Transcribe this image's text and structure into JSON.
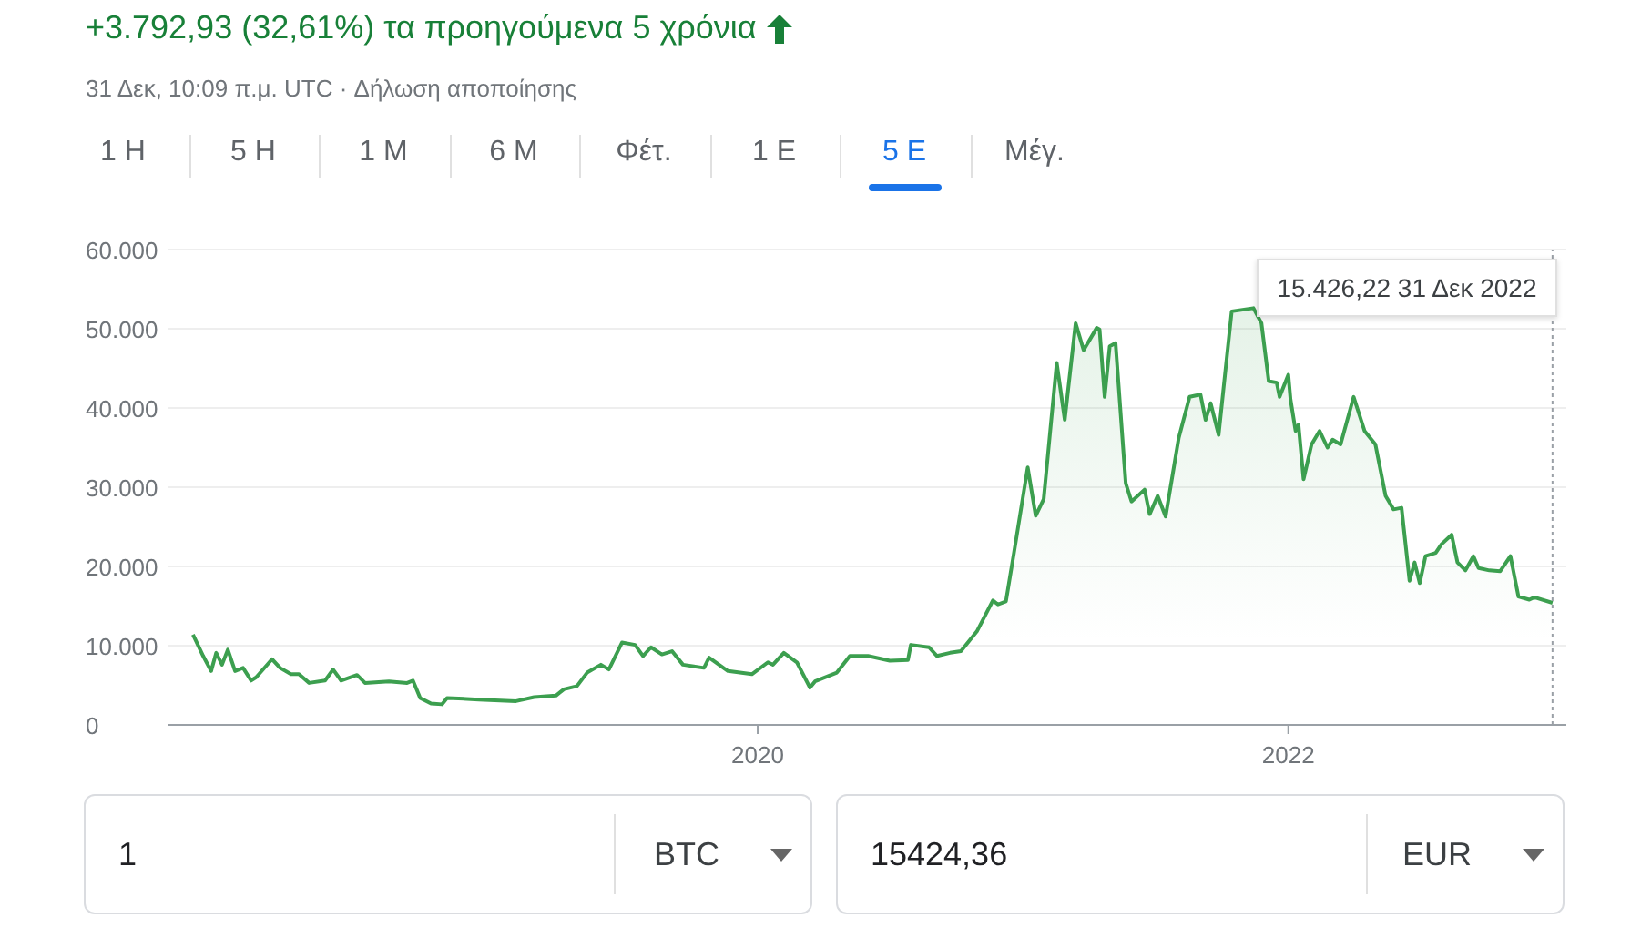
{
  "chart_data": {
    "type": "area",
    "title": "+3.792,93 (32,61%) τα προηγούμενα 5 χρόνια",
    "subtitle": "31 Δεκ, 10:09 π.μ. UTC · Δήλωση αποποίησης",
    "annotations": [
      "1 Η",
      "5 Η",
      "1 Μ",
      "6 Μ",
      "Φέτ.",
      "1 Ε",
      "5 Ε",
      "Μέγ.",
      "1",
      "BTC",
      "15424,36",
      "EUR",
      "15.426,22 31 Δεκ 2022"
    ],
    "ref_lines": [
      {
        "axis": "x",
        "value": "2022-12-31",
        "color": "#9aa0a6",
        "line_style": "dotted"
      }
    ],
    "x": [
      "2017-11-14",
      "2017-11-28",
      "2017-12-09",
      "2017-12-16",
      "2017-12-24",
      "2018-01-01",
      "2018-01-11",
      "2018-01-22",
      "2018-02-02",
      "2018-02-09",
      "2018-03-03",
      "2018-03-14",
      "2018-03-29",
      "2018-04-09",
      "2018-04-23",
      "2018-05-15",
      "2018-05-26",
      "2018-06-06",
      "2018-06-28",
      "2018-07-09",
      "2018-08-11",
      "2018-09-05",
      "2018-09-13",
      "2018-09-23",
      "2018-10-08",
      "2018-10-23",
      "2018-10-30",
      "2018-12-13",
      "2019-02-02",
      "2019-02-27",
      "2019-03-29",
      "2019-04-09",
      "2019-04-27",
      "2019-05-11",
      "2019-05-30",
      "2019-06-10",
      "2019-06-28",
      "2019-07-16",
      "2019-07-27",
      "2019-08-07",
      "2019-08-22",
      "2019-09-05",
      "2019-09-20",
      "2019-10-19",
      "2019-10-26",
      "2019-11-21",
      "2019-12-24",
      "2020-01-15",
      "2020-01-22",
      "2020-02-06",
      "2020-02-24",
      "2020-03-13",
      "2020-03-20",
      "2020-04-19",
      "2020-05-07",
      "2020-06-01",
      "2020-07-01",
      "2020-07-26",
      "2020-07-30",
      "2020-08-24",
      "2020-09-04",
      "2020-09-22",
      "2020-10-07",
      "2020-10-29",
      "2020-11-20",
      "2020-11-27",
      "2020-12-08",
      "2020-12-19",
      "2021-01-07",
      "2021-01-18",
      "2021-01-29",
      "2021-02-16",
      "2021-02-27",
      "2021-03-14",
      "2021-03-25",
      "2021-04-12",
      "2021-04-16",
      "2021-04-23",
      "2021-04-30",
      "2021-05-08",
      "2021-05-22",
      "2021-05-30",
      "2021-06-17",
      "2021-06-24",
      "2021-07-05",
      "2021-07-16",
      "2021-08-03",
      "2021-08-18",
      "2021-09-02",
      "2021-09-09",
      "2021-09-16",
      "2021-09-27",
      "2021-10-15",
      "2021-11-14",
      "2021-11-25",
      "2021-12-05",
      "2021-12-16",
      "2021-12-20",
      "2022-01-01",
      "2022-01-04",
      "2022-01-11",
      "2022-01-15",
      "2022-01-22",
      "2022-02-02",
      "2022-02-13",
      "2022-02-24",
      "2022-03-03",
      "2022-03-14",
      "2022-04-01",
      "2022-04-16",
      "2022-05-01",
      "2022-05-15",
      "2022-05-26",
      "2022-06-06",
      "2022-06-17",
      "2022-06-24",
      "2022-07-01",
      "2022-07-09",
      "2022-07-23",
      "2022-07-31",
      "2022-08-14",
      "2022-08-22",
      "2022-09-02",
      "2022-09-13",
      "2022-09-20",
      "2022-10-05",
      "2022-10-20",
      "2022-11-03",
      "2022-11-14",
      "2022-11-29",
      "2022-12-06",
      "2022-12-31"
    ],
    "series": [
      {
        "color": "#3c9f4f",
        "values": [
          11400,
          8700,
          6800,
          9100,
          7600,
          9500,
          6800,
          7200,
          5600,
          6000,
          8300,
          7200,
          6400,
          6400,
          5300,
          5600,
          7000,
          5600,
          6300,
          5300,
          5500,
          5300,
          5600,
          3400,
          2700,
          2600,
          3400,
          3200,
          3000,
          3500,
          3700,
          4500,
          4900,
          6600,
          7600,
          7000,
          10400,
          10100,
          8700,
          9800,
          8900,
          9300,
          7600,
          7200,
          8500,
          6800,
          6400,
          7900,
          7600,
          9100,
          7900,
          4700,
          5500,
          6600,
          8700,
          8700,
          8100,
          8200,
          10100,
          9800,
          8700,
          9100,
          9300,
          11800,
          15700,
          15200,
          15600,
          21700,
          32500,
          26400,
          28500,
          45700,
          38500,
          50700,
          47300,
          50100,
          49900,
          41400,
          47800,
          48200,
          30500,
          28200,
          29700,
          26600,
          28900,
          26300,
          36200,
          41400,
          41700,
          38500,
          40600,
          36600,
          52200,
          52600,
          50700,
          43400,
          43200,
          41400,
          44200,
          41100,
          37100,
          37900,
          31000,
          35400,
          37100,
          35000,
          36000,
          35400,
          41400,
          37100,
          35400,
          28900,
          27200,
          27400,
          18200,
          20500,
          17900,
          21300,
          21700,
          22800,
          24000,
          20500,
          19500,
          21300,
          19800,
          19500,
          19400,
          21300,
          16200,
          15800,
          16100,
          15400
        ]
      }
    ],
    "xlim": [
      "2017-10-10",
      "2023-01-19"
    ],
    "xticks": [
      "2020",
      "2022"
    ],
    "ylim": [
      0,
      60000
    ],
    "yticks": [
      0,
      {
        "value": 10000,
        "label": "10.000"
      },
      {
        "value": 20000,
        "label": "20.000"
      },
      {
        "value": 30000,
        "label": "30.000"
      },
      {
        "value": 40000,
        "label": "40.000"
      },
      {
        "value": 50000,
        "label": "50.000"
      },
      {
        "value": 60000,
        "label": "60.000"
      }
    ],
    "grid": "y"
  }
}
